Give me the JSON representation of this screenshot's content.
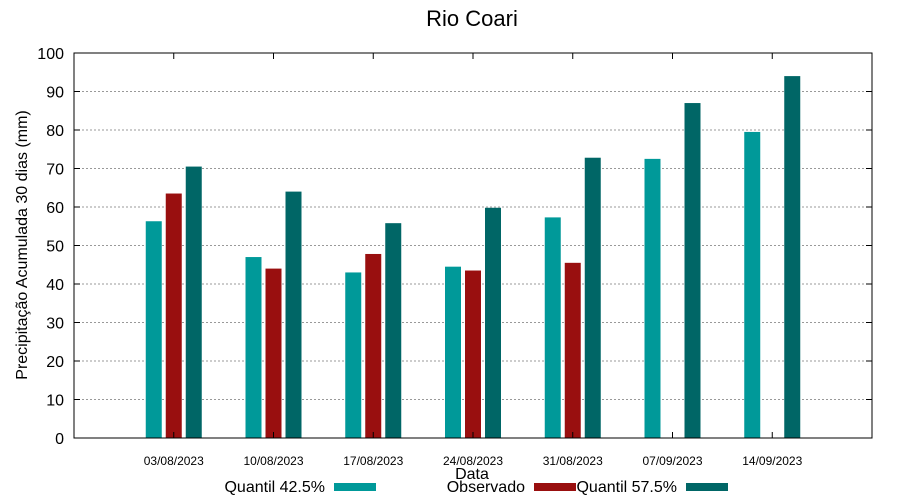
{
  "chart_data": {
    "type": "bar",
    "title": "Rio Coari",
    "xlabel": "Data",
    "ylabel": "Precipitação Acumulada 30 dias (mm)",
    "ylim": [
      0,
      100
    ],
    "yticks": [
      0,
      10,
      20,
      30,
      40,
      50,
      60,
      70,
      80,
      90,
      100
    ],
    "grid": true,
    "legend_position": "bottom",
    "categories": [
      "03/08/2023",
      "10/08/2023",
      "17/08/2023",
      "24/08/2023",
      "31/08/2023",
      "07/09/2023",
      "14/09/2023"
    ],
    "series": [
      {
        "name": "Quantil 42.5%",
        "color": "#009999",
        "values": [
          56.3,
          47.0,
          43.0,
          44.5,
          57.3,
          72.5,
          79.5
        ]
      },
      {
        "name": "Observado",
        "color": "#990F0F",
        "values": [
          63.5,
          44.0,
          47.8,
          43.5,
          45.5,
          null,
          null
        ]
      },
      {
        "name": "Quantil 57.5%",
        "color": "#006666",
        "values": [
          70.5,
          64.0,
          55.8,
          59.8,
          72.8,
          87.0,
          94.0
        ]
      }
    ]
  }
}
